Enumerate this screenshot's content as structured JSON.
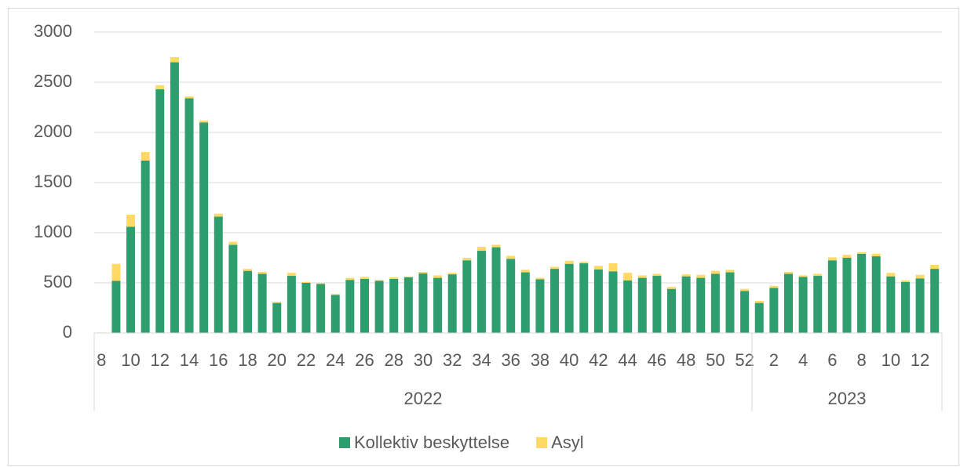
{
  "chart_data": {
    "type": "stacked_bar",
    "categories": [
      "8",
      null,
      "10",
      null,
      "12",
      null,
      "14",
      null,
      "16",
      null,
      "18",
      null,
      "20",
      null,
      "22",
      null,
      "24",
      null,
      "26",
      null,
      "28",
      null,
      "30",
      null,
      "32",
      null,
      "34",
      null,
      "36",
      null,
      "38",
      null,
      "40",
      null,
      "42",
      null,
      "44",
      null,
      "46",
      null,
      "48",
      null,
      "50",
      null,
      "52",
      null,
      "2",
      null,
      "4",
      null,
      "6",
      null,
      "8",
      null,
      "10",
      null,
      "12",
      null
    ],
    "category_groups": [
      {
        "name": "2022",
        "size": 45
      },
      {
        "name": "2023",
        "size": 13
      }
    ],
    "series": [
      {
        "name": "Kollektiv beskyttelse",
        "color": "#2e9e6e",
        "values": [
          3,
          520,
          1060,
          1720,
          2430,
          2700,
          2340,
          2100,
          1160,
          880,
          620,
          590,
          300,
          570,
          500,
          490,
          380,
          530,
          540,
          520,
          540,
          555,
          595,
          550,
          585,
          725,
          820,
          855,
          740,
          605,
          535,
          640,
          690,
          695,
          635,
          615,
          525,
          550,
          570,
          440,
          565,
          550,
          590,
          605,
          420,
          300,
          450,
          590,
          560,
          570,
          725,
          750,
          790,
          765,
          565,
          510,
          545,
          640
        ]
      },
      {
        "name": "Asyl",
        "color": "#ffd966",
        "values": [
          2,
          170,
          120,
          85,
          40,
          50,
          20,
          20,
          30,
          30,
          20,
          20,
          10,
          30,
          10,
          10,
          10,
          20,
          20,
          10,
          15,
          10,
          15,
          25,
          15,
          25,
          40,
          25,
          30,
          25,
          15,
          20,
          30,
          15,
          35,
          80,
          75,
          25,
          20,
          20,
          20,
          30,
          30,
          25,
          20,
          20,
          20,
          20,
          15,
          20,
          30,
          30,
          15,
          25,
          35,
          15,
          35,
          40
        ]
      }
    ],
    "ylim": [
      0,
      3000
    ],
    "yticks": [
      0,
      500,
      1000,
      1500,
      2000,
      2500,
      3000
    ],
    "grid": true,
    "legend": "bottom"
  }
}
